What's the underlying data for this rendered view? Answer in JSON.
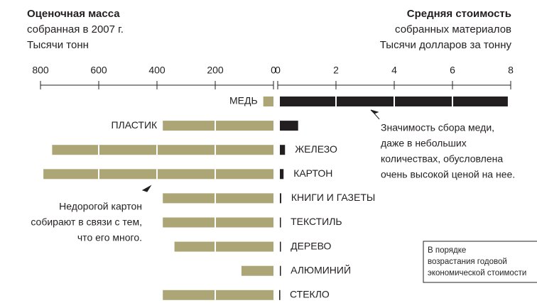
{
  "chart_data": [
    {
      "type": "bar",
      "title": [
        "Оценочная масса",
        "собранная в 2007 г.",
        "Тысячи тонн"
      ],
      "categories": [
        "МЕДЬ",
        "ПЛАСТИК",
        "ЖЕЛЕЗО",
        "КАРТОН",
        "КНИГИ И ГАЗЕТЫ",
        "ТЕКСТИЛЬ",
        "ДЕРЕВО",
        "АЛЮМИНИЙ",
        "СТЕКЛО"
      ],
      "values": [
        35,
        380,
        760,
        790,
        380,
        380,
        340,
        110,
        380
      ],
      "color": "#aca677",
      "xlim": [
        800,
        0
      ],
      "xticks": [
        800,
        600,
        400,
        200,
        0
      ],
      "annotations": [
        [
          "Недорогой картон",
          "собирают в связи с тем,",
          "что его много."
        ]
      ]
    },
    {
      "type": "bar",
      "title": [
        "Средняя стоимость",
        "собранных материалов",
        "Тысячи долларов за тонну"
      ],
      "values": [
        7.9,
        0.7,
        0.25,
        0.2,
        0.12,
        0.1,
        0.1,
        0.1,
        0.05
      ],
      "color": "#231f20",
      "xlim": [
        0,
        8
      ],
      "xticks": [
        0,
        2,
        4,
        6,
        8
      ],
      "annotations": [
        [
          "Значимость сбора меди,",
          "даже в небольших",
          "количествах, обусловлена",
          "очень высокой ценой на нее."
        ]
      ],
      "note": [
        "В порядке",
        "возрастания годовой",
        "экономической стоимости"
      ]
    }
  ]
}
